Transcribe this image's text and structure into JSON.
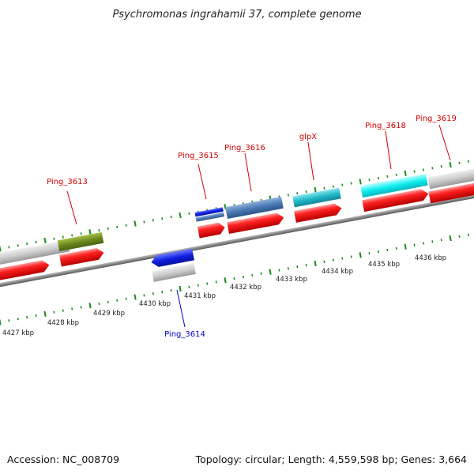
{
  "title": "Psychromonas ingrahamii 37, complete genome",
  "footer": {
    "accession": "Accession: NC_008709",
    "topology": "Topology: circular; Length: 4,559,598 bp; Genes: 3,664"
  },
  "ruler_labels": [
    "4427 kbp",
    "4428 kbp",
    "4429 kbp",
    "4430 kbp",
    "4431 kbp",
    "4432 kbp",
    "4433 kbp",
    "4434 kbp",
    "4435 kbp",
    "4436 kbp"
  ],
  "gene_labels": [
    "Ping_3613",
    "Ping_3614",
    "Ping_3615",
    "Ping_3616",
    "glpX",
    "Ping_3618",
    "Ping_3619"
  ],
  "colors": {
    "cds": "#ee1111",
    "gene_gray": "#c8c8c8",
    "tick": "#1a8c1a",
    "backbone": "#888888",
    "label_forward": "#d40000",
    "label_reverse": "#0000cc",
    "olive": "#6b8a1c",
    "steelblue": "#4a7ab5",
    "teal": "#22b8c8",
    "cyan": "#11eeee",
    "blue": "#1020e0"
  }
}
